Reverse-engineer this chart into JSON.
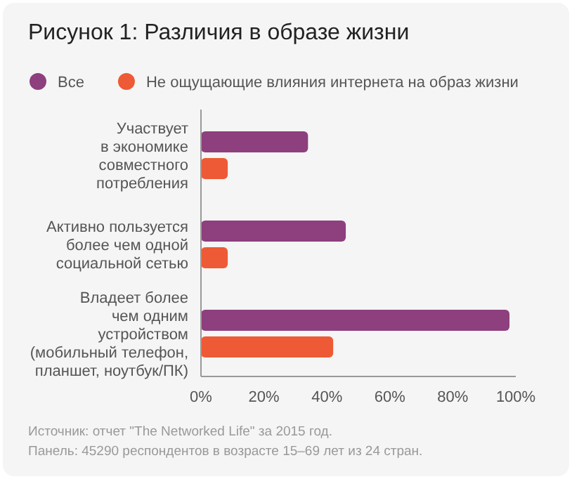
{
  "chart_data": {
    "type": "bar",
    "orientation": "horizontal",
    "title": "Рисунок 1: Различия в образе жизни",
    "categories": [
      "Участвует\nв экономике\nсовместного\nпотребления",
      "Активно пользуется\nболее чем одной\nсоциальной сетью",
      "Владеет более\nчем одним\nустройством\n(мобильный телефон,\nпланшет, ноутбук/ПК)"
    ],
    "series": [
      {
        "name": "Все",
        "color": "#8e3f7e",
        "values": [
          34,
          46,
          98
        ]
      },
      {
        "name": "Не ощущающие влияния интернета на образ жизни",
        "color": "#ee5a35",
        "values": [
          8.5,
          8.5,
          42
        ]
      }
    ],
    "xlim": [
      0,
      100
    ],
    "xticks": [
      {
        "value": 0,
        "label": "0%"
      },
      {
        "value": 20,
        "label": "20%"
      },
      {
        "value": 40,
        "label": "40%"
      },
      {
        "value": 60,
        "label": "60%"
      },
      {
        "value": 80,
        "label": "80%"
      },
      {
        "value": 100,
        "label": "100%"
      }
    ],
    "legend": "top",
    "annotations": [
      "Источник: отчет \"The Networked Life\" за 2015 год.",
      "Панель: 45290 респондентов в возрасте 15–69 лет из 24 стран."
    ]
  }
}
